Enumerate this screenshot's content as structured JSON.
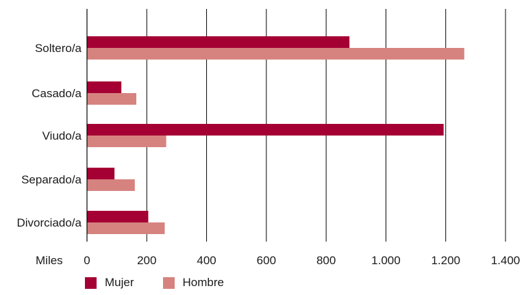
{
  "chart_data": {
    "type": "bar",
    "orientation": "horizontal",
    "categories": [
      "Soltero/a",
      "Casado/a",
      "Viudo/a",
      "Separado/a",
      "Divorciado/a"
    ],
    "series": [
      {
        "name": "Mujer",
        "color": "#a50034",
        "values": [
          878,
          115,
          1193,
          92,
          205
        ]
      },
      {
        "name": "Hombre",
        "color": "#d6837f",
        "values": [
          1262,
          165,
          265,
          160,
          260
        ]
      }
    ],
    "xlabel": "Miles",
    "ylabel": "",
    "title": "",
    "xlim": [
      0,
      1400
    ],
    "xticks": [
      {
        "value": 0,
        "label": "0"
      },
      {
        "value": 200,
        "label": "200"
      },
      {
        "value": 400,
        "label": "400"
      },
      {
        "value": 600,
        "label": "600"
      },
      {
        "value": 800,
        "label": "800"
      },
      {
        "value": 1000,
        "label": "1.000"
      },
      {
        "value": 1200,
        "label": "1.200"
      },
      {
        "value": 1400,
        "label": "1.400"
      }
    ],
    "grid": "vertical",
    "legend": "bottom-left",
    "axis_color": "#000000"
  }
}
